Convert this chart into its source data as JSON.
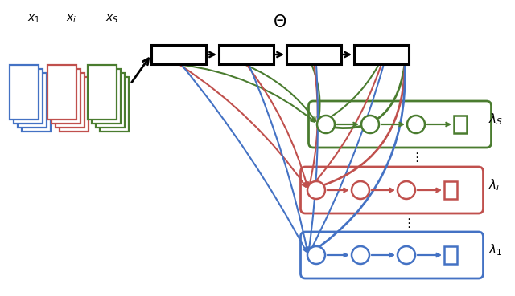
{
  "bg_color": "#ffffff",
  "blue_color": "#4472C4",
  "red_color": "#C0504D",
  "green_color": "#4a7c2f",
  "black_color": "#000000",
  "fig_width": 6.4,
  "fig_height": 3.69,
  "dpi": 100
}
